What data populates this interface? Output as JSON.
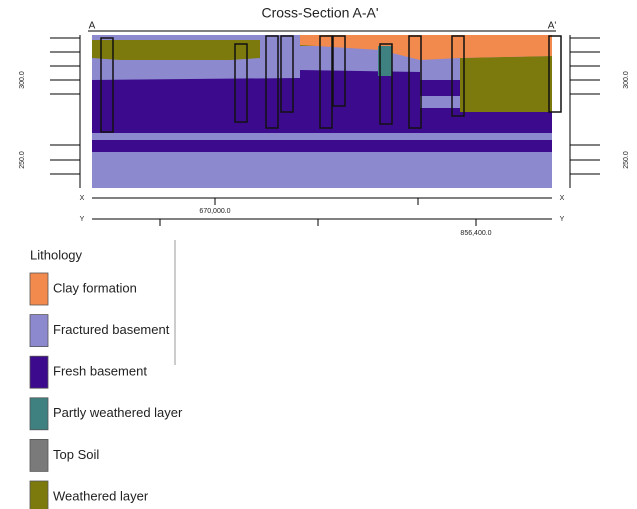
{
  "header": {
    "title": "Cross-Section A-A'",
    "left_end": "A",
    "right_end": "A'"
  },
  "section": {
    "elevation_labels": [
      "300.0",
      "250.0"
    ],
    "x_axis": {
      "name": "X",
      "label": "670,000.0"
    },
    "y_axis": {
      "name": "Y",
      "label": "856,400.0"
    }
  },
  "legend": {
    "title": "Lithology",
    "items": [
      {
        "label": "Clay formation",
        "color": "#f28a4e"
      },
      {
        "label": "Fractured basement",
        "color": "#8c89cf"
      },
      {
        "label": "Fresh basement",
        "color": "#3c0a8c"
      },
      {
        "label": "Partly weathered layer",
        "color": "#3f8080"
      },
      {
        "label": "Top Soil",
        "color": "#7a7a7a"
      },
      {
        "label": "Weathered layer",
        "color": "#7c7a0c"
      }
    ]
  }
}
